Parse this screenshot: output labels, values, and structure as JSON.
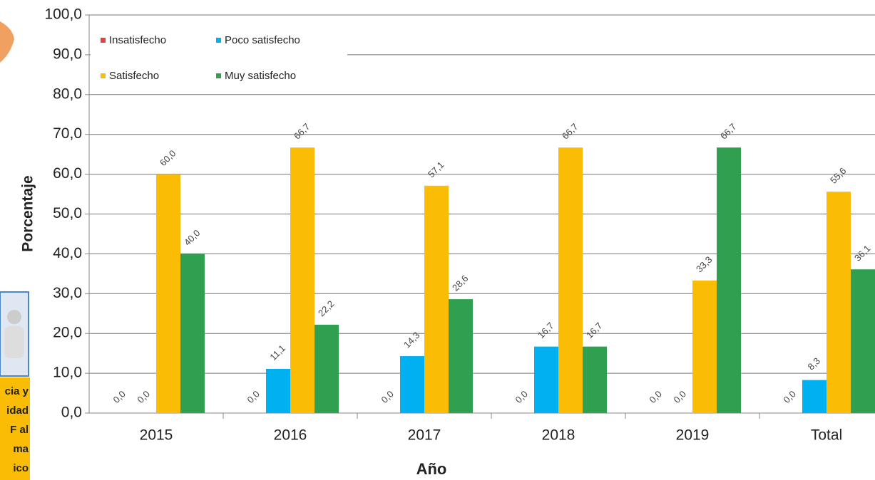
{
  "chart_data": {
    "type": "bar",
    "x_label": "Año",
    "y_label": "Porcentaje",
    "categories": [
      "2015",
      "2016",
      "2017",
      "2018",
      "2019",
      "Total"
    ],
    "series": [
      {
        "name": "Insatisfecho",
        "color": "#e8403a",
        "values": [
          0,
          0,
          0,
          0,
          0,
          0
        ],
        "value_labels": [
          "0,0",
          "0,0",
          "0,0",
          "0,0",
          "0,0",
          "0,0"
        ]
      },
      {
        "name": "Poco satisfecho",
        "color": "#00b0f0",
        "values": [
          0,
          11.1,
          14.3,
          16.7,
          0,
          8.3
        ],
        "value_labels": [
          "0,0",
          "11,1",
          "14,3",
          "16,7",
          "0,0",
          "8,3"
        ]
      },
      {
        "name": "Satisfecho",
        "color": "#fbbc05",
        "values": [
          60,
          66.7,
          57.1,
          66.7,
          33.3,
          55.6
        ],
        "value_labels": [
          "60,0",
          "66,7",
          "57,1",
          "66,7",
          "33,3",
          "55,6"
        ]
      },
      {
        "name": "Muy satisfecho",
        "color": "#2ea04f",
        "values": [
          40,
          22.2,
          28.6,
          16.7,
          66.7,
          36.1
        ],
        "value_labels": [
          "40,0",
          "22,2",
          "28,6",
          "16,7",
          "66,7",
          "36,1"
        ]
      }
    ],
    "ylim": [
      0,
      100
    ],
    "yticks": [
      {
        "value": 0,
        "label": "0,0"
      },
      {
        "value": 10,
        "label": "10,0"
      },
      {
        "value": 20,
        "label": "20,0"
      },
      {
        "value": 30,
        "label": "30,0"
      },
      {
        "value": 40,
        "label": "40,0"
      },
      {
        "value": 50,
        "label": "50,0"
      },
      {
        "value": 60,
        "label": "60,0"
      },
      {
        "value": 70,
        "label": "70,0"
      },
      {
        "value": 80,
        "label": "80,0"
      },
      {
        "value": 90,
        "label": "90,0"
      },
      {
        "value": 100,
        "label": "100,0"
      }
    ],
    "grid": true
  },
  "side_panel": {
    "lines": [
      "cia y",
      "idad",
      "F al",
      "ma",
      "ico"
    ]
  }
}
